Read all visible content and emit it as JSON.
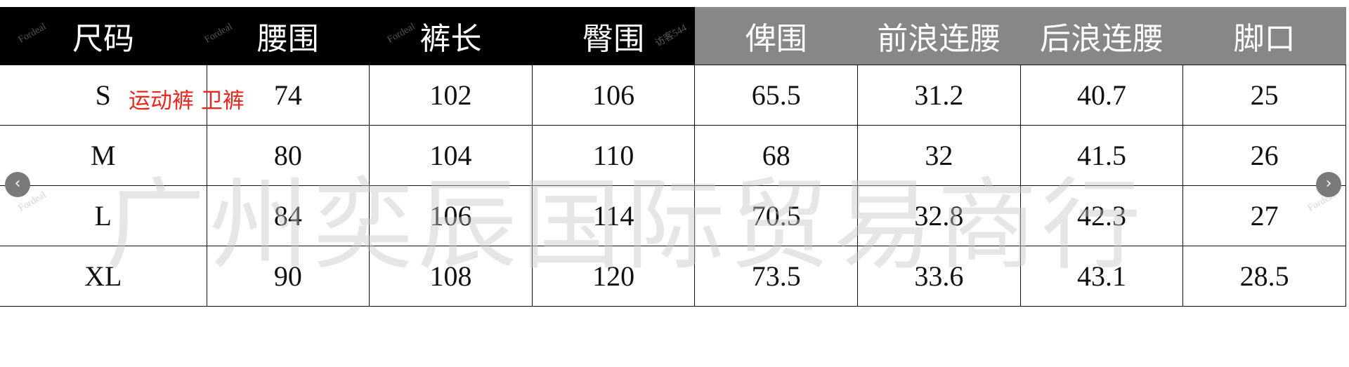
{
  "table": {
    "headers": [
      "尺码",
      "腰围",
      "裤长",
      "臀围",
      "俾围",
      "前浪连腰",
      "后浪连腰",
      "脚口"
    ],
    "header_colors": {
      "dark": "#000000",
      "gray": "#878787"
    },
    "rows": [
      [
        "S",
        "74",
        "102",
        "106",
        "65.5",
        "31.2",
        "40.7",
        "25"
      ],
      [
        "M",
        "80",
        "104",
        "110",
        "68",
        "32",
        "41.5",
        "26"
      ],
      [
        "L",
        "84",
        "106",
        "114",
        "70.5",
        "32.8",
        "42.3",
        "27"
      ],
      [
        "XL",
        "90",
        "108",
        "120",
        "73.5",
        "33.6",
        "43.1",
        "28.5"
      ]
    ]
  },
  "note": {
    "text": "运动裤 卫裤",
    "color": "#e8281e"
  },
  "watermark": {
    "main": "广州奕辰国际贸易商行",
    "brand": "Fordeal",
    "visitor": "访客544"
  },
  "nav": {
    "prev_icon": "chevron-left-icon",
    "next_icon": "chevron-right-icon"
  }
}
